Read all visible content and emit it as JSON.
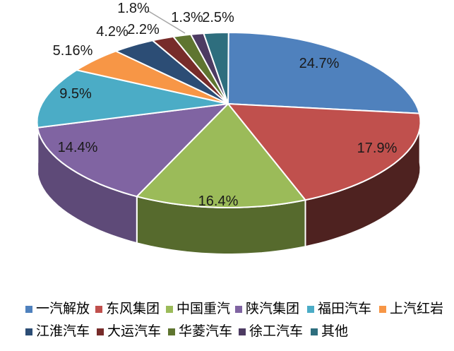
{
  "chart_data": {
    "type": "pie",
    "style": "3d",
    "title": "",
    "unit": "%",
    "categories": [
      "一汽解放",
      "东风集团",
      "中国重汽",
      "陕汽集团",
      "福田汽车",
      "上汽红岩",
      "江淮汽车",
      "大运汽车",
      "华菱汽车",
      "徐工汽车",
      "其他"
    ],
    "values": [
      24.7,
      17.9,
      16.4,
      14.4,
      9.5,
      5.16,
      4.2,
      2.2,
      1.8,
      1.3,
      2.5
    ],
    "labels": [
      "24.7%",
      "17.9%",
      "16.4%",
      "14.4%",
      "9.5%",
      "5.16%",
      "4.2%",
      "2.2%",
      "1.8%",
      "1.3%",
      "2.5%"
    ],
    "colors": [
      "#4F81BD",
      "#C0504D",
      "#9BBB59",
      "#8064A2",
      "#4BACC6",
      "#F79646",
      "#2C4D75",
      "#772C2A",
      "#5F7530",
      "#4D3B62",
      "#2E6E7E"
    ],
    "side_colors": [
      "#35567E",
      "#4E2220",
      "#566A2D",
      "#5E4A78",
      "#2E6777",
      "#A66330",
      "#1E3450",
      "#4F1D1C",
      "#3F4E20",
      "#332741",
      "#1F4A55"
    ],
    "label_placement": [
      "inside",
      "inside",
      "inside",
      "inside",
      "inside",
      "outside",
      "outside",
      "outside",
      "outside",
      "outside",
      "outside"
    ],
    "leader_line": {
      "from_label": "1.8%",
      "to_category": "华菱汽车",
      "color": "#A6A6A6"
    },
    "start_angle_deg": 0,
    "direction": "clockwise",
    "grid": false,
    "legend_position": "bottom",
    "legend_row_split": [
      6,
      5
    ],
    "stroke_color": "#FFFFFF",
    "background": "#FFFFFF"
  }
}
